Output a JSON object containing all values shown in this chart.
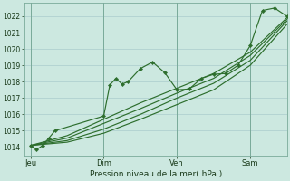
{
  "background_color": "#cce8e0",
  "grid_color": "#aacccc",
  "line_color": "#2d6e2d",
  "marker_color": "#2d6e2d",
  "xlabel": "Pression niveau de la mer( hPa )",
  "ylim": [
    1013.5,
    1022.8
  ],
  "yticks": [
    1014,
    1015,
    1016,
    1017,
    1018,
    1019,
    1020,
    1021,
    1022
  ],
  "xtick_labels": [
    "Jeu",
    "Dim",
    "Ven",
    "Sam"
  ],
  "xtick_positions": [
    0,
    24,
    48,
    72
  ],
  "xlim": [
    -2,
    84
  ],
  "vline_positions": [
    0,
    24,
    48,
    72
  ],
  "main_x": [
    0,
    2,
    4,
    6,
    8,
    24,
    26,
    28,
    30,
    32,
    36,
    40,
    44,
    48,
    52,
    56,
    60,
    64,
    68,
    72,
    76,
    80,
    84
  ],
  "main_y": [
    1014.1,
    1013.85,
    1014.1,
    1014.55,
    1015.0,
    1015.9,
    1017.8,
    1018.2,
    1017.85,
    1018.0,
    1018.8,
    1019.2,
    1018.55,
    1017.5,
    1017.55,
    1018.2,
    1018.45,
    1018.5,
    1019.0,
    1020.2,
    1022.35,
    1022.5,
    1022.0
  ],
  "line2_x": [
    0,
    12,
    24,
    36,
    48,
    60,
    72,
    84
  ],
  "line2_y": [
    1014.1,
    1014.7,
    1015.7,
    1016.7,
    1017.6,
    1018.5,
    1019.8,
    1021.9
  ],
  "line3_x": [
    0,
    12,
    24,
    36,
    48,
    60,
    72,
    84
  ],
  "line3_y": [
    1014.1,
    1014.55,
    1015.45,
    1016.35,
    1017.3,
    1018.2,
    1019.6,
    1021.8
  ],
  "line4_x": [
    0,
    12,
    24,
    36,
    48,
    60,
    72,
    84
  ],
  "line4_y": [
    1014.1,
    1014.4,
    1015.1,
    1016.0,
    1017.0,
    1017.9,
    1019.3,
    1021.7
  ],
  "line5_x": [
    0,
    12,
    24,
    36,
    48,
    60,
    72,
    84
  ],
  "line5_y": [
    1014.1,
    1014.3,
    1014.85,
    1015.7,
    1016.6,
    1017.5,
    1019.0,
    1021.5
  ]
}
